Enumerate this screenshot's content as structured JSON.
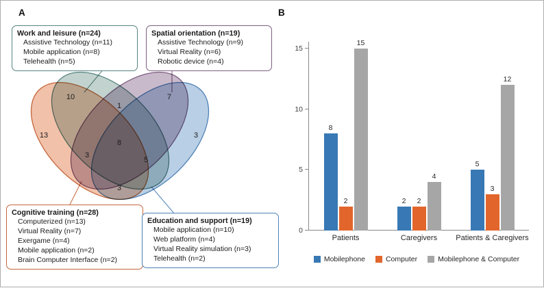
{
  "panels": {
    "a_label": "A",
    "b_label": "B"
  },
  "venn": {
    "sets": [
      {
        "name": "work-and-leisure",
        "title": "Work and leisure (n=24)",
        "items": [
          "Assistive Technology (n=11)",
          "Mobile application (n=8)",
          "Telehealth (n=5)"
        ],
        "fill": "#8FAEA8",
        "stroke": "#56837F"
      },
      {
        "name": "spatial-orientation",
        "title": "Spatial orientation (n=19)",
        "items": [
          "Assistive Technology (n=9)",
          "Virtual Reality (n=6)",
          "Robotic device (n=4)"
        ],
        "fill": "#9D82A0",
        "stroke": "#7C5C80"
      },
      {
        "name": "cognitive-training",
        "title": "Cognitive training (n=28)",
        "items": [
          "Computerized (n=13)",
          "Virtual Reality (n=7)",
          "Exergame (n=4)",
          "Mobile application (n=2)",
          "Brain Computer Interface (n=2)"
        ],
        "fill": "#E58E64",
        "stroke": "#C4663B"
      },
      {
        "name": "education-and-support",
        "title": "Education and support (n=19)",
        "items": [
          "Mobile application (n=10)",
          "Web platform (n=4)",
          "Virtual Reality simulation (n=3)",
          "Telehealth (n=2)"
        ],
        "fill": "#7FA8D0",
        "stroke": "#4E81B6"
      }
    ],
    "region_counts": {
      "work_only": "10",
      "spatial_only": "7",
      "cognitive_only": "13",
      "education_only": "3",
      "work_spatial": "1",
      "all_four": "8",
      "left_mid": "3",
      "right_mid": "5",
      "bottom_mid": "3"
    }
  },
  "chart_data": {
    "type": "bar",
    "categories": [
      "Patients",
      "Caregivers",
      "Patients & Caregivers"
    ],
    "series": [
      {
        "name": "Mobilephone",
        "color": "#3878B4",
        "values": [
          8,
          2,
          5
        ]
      },
      {
        "name": "Computer",
        "color": "#E2662B",
        "values": [
          2,
          2,
          3
        ]
      },
      {
        "name": "Mobilephone & Computer",
        "color": "#A6A6A6",
        "values": [
          15,
          4,
          12
        ]
      }
    ],
    "ylim": [
      0,
      15
    ],
    "yticks": [
      0,
      5,
      10,
      15
    ],
    "legend_position": "bottom",
    "value_labels": true,
    "grid": false
  }
}
